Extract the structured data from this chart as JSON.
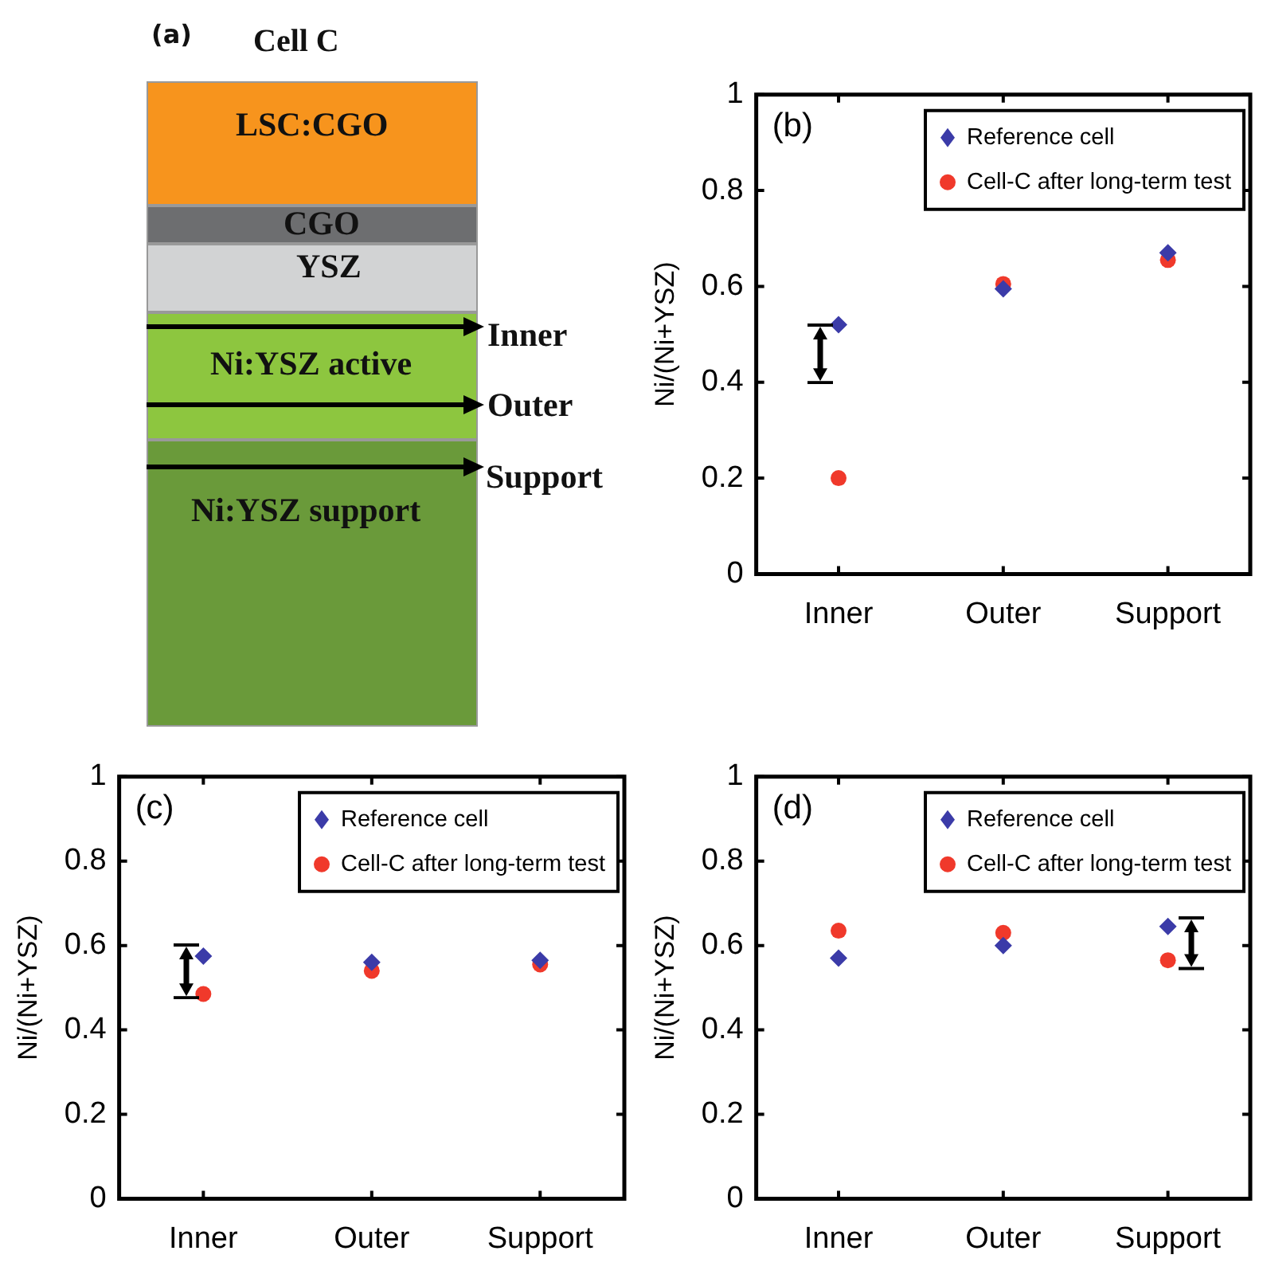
{
  "chart_data": [
    {
      "type": "other",
      "title": "Cell C",
      "annotations": [
        "(a)",
        "LSC:CGO",
        "CGO",
        "YSZ",
        "Ni:YSZ active",
        "Ni:YSZ support",
        "Inner",
        "Outer",
        "Support"
      ]
    },
    {
      "type": "scatter",
      "ylabel": "Ni/(Ni+YSZ)",
      "annotations": [
        "(b)"
      ],
      "categories": [
        "Inner",
        "Outer",
        "Support"
      ],
      "ylim": [
        0,
        1
      ],
      "yticks": [
        0,
        0.2,
        0.4,
        0.6,
        0.8,
        1
      ],
      "grid": false,
      "legend": "top right",
      "series": [
        {
          "name": "Reference cell",
          "color": "#3b3ba8",
          "marker": "diamond",
          "values": [
            0.52,
            0.595,
            0.67
          ]
        },
        {
          "name": "Cell-C after long-term test",
          "color": "#f0392b",
          "marker": "circle",
          "values": [
            0.2,
            0.605,
            0.655
          ]
        }
      ]
    },
    {
      "type": "scatter",
      "ylabel": "Ni/(Ni+YSZ)",
      "annotations": [
        "(c)"
      ],
      "categories": [
        "Inner",
        "Outer",
        "Support"
      ],
      "ylim": [
        0,
        1
      ],
      "yticks": [
        0,
        0.2,
        0.4,
        0.6,
        0.8,
        1
      ],
      "grid": false,
      "legend": "top right",
      "series": [
        {
          "name": "Reference cell",
          "color": "#3b3ba8",
          "marker": "diamond",
          "values": [
            0.575,
            0.56,
            0.565
          ]
        },
        {
          "name": "Cell-C after long-term test",
          "color": "#f0392b",
          "marker": "circle",
          "values": [
            0.485,
            0.54,
            0.555
          ]
        }
      ]
    },
    {
      "type": "scatter",
      "ylabel": "Ni/(Ni+YSZ)",
      "annotations": [
        "(d)"
      ],
      "categories": [
        "Inner",
        "Outer",
        "Support"
      ],
      "ylim": [
        0,
        1
      ],
      "yticks": [
        0,
        0.2,
        0.4,
        0.6,
        0.8,
        1
      ],
      "grid": false,
      "legend": "top right",
      "series": [
        {
          "name": "Reference cell",
          "color": "#3b3ba8",
          "marker": "diamond",
          "values": [
            0.57,
            0.6,
            0.645
          ]
        },
        {
          "name": "Cell-C after long-term test",
          "color": "#f0392b",
          "marker": "circle",
          "values": [
            0.635,
            0.63,
            0.565
          ]
        }
      ]
    }
  ]
}
